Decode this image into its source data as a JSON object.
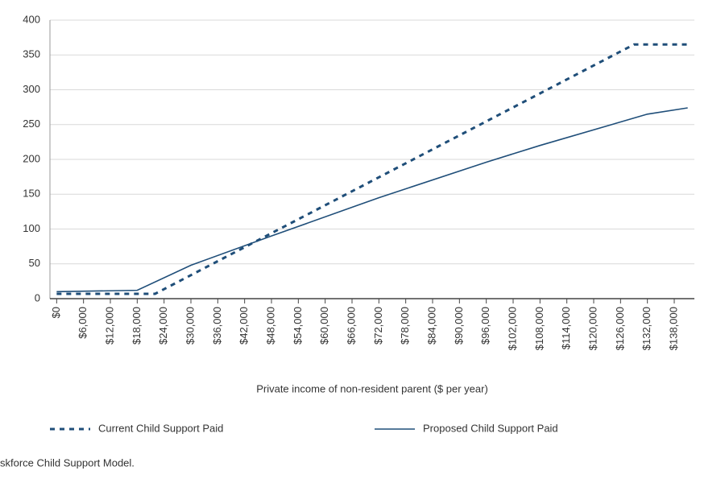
{
  "chart_data": {
    "type": "line",
    "x_label": "Private income of non-resident parent ($ per year)",
    "source": "skforce Child Support Model.",
    "xlim": [
      -1500,
      142500
    ],
    "xticks": [
      {
        "value": 0,
        "label": "$0"
      },
      {
        "value": 6000,
        "label": "$6,000"
      },
      {
        "value": 12000,
        "label": "$12,000"
      },
      {
        "value": 18000,
        "label": "$18,000"
      },
      {
        "value": 24000,
        "label": "$24,000"
      },
      {
        "value": 30000,
        "label": "$30,000"
      },
      {
        "value": 36000,
        "label": "$36,000"
      },
      {
        "value": 42000,
        "label": "$42,000"
      },
      {
        "value": 48000,
        "label": "$48,000"
      },
      {
        "value": 54000,
        "label": "$54,000"
      },
      {
        "value": 60000,
        "label": "$60,000"
      },
      {
        "value": 66000,
        "label": "$66,000"
      },
      {
        "value": 72000,
        "label": "$72,000"
      },
      {
        "value": 78000,
        "label": "$78,000"
      },
      {
        "value": 84000,
        "label": "$84,000"
      },
      {
        "value": 90000,
        "label": "$90,000"
      },
      {
        "value": 96000,
        "label": "$96,000"
      },
      {
        "value": 102000,
        "label": "$102,000"
      },
      {
        "value": 108000,
        "label": "$108,000"
      },
      {
        "value": 114000,
        "label": "$114,000"
      },
      {
        "value": 120000,
        "label": "$120,000"
      },
      {
        "value": 126000,
        "label": "$126,000"
      },
      {
        "value": 132000,
        "label": "$132,000"
      },
      {
        "value": 138000,
        "label": "$138,000"
      }
    ],
    "ylim": [
      0,
      400
    ],
    "yticks": [
      0,
      50,
      100,
      150,
      200,
      250,
      300,
      350,
      400
    ],
    "grid": true,
    "series": [
      {
        "name": "Current Child Support Paid",
        "color": "#1f4e79",
        "dash": true,
        "x": [
          0,
          22000,
          129000,
          141000
        ],
        "values": [
          7,
          7,
          365,
          365
        ]
      },
      {
        "name": "Proposed Child Support Paid",
        "color": "#1f4e79",
        "dash": false,
        "x": [
          0,
          18000,
          30000,
          48000,
          72000,
          96000,
          108000,
          132000,
          141000
        ],
        "values": [
          10,
          12,
          48,
          90,
          145,
          196,
          220,
          265,
          274
        ]
      }
    ]
  }
}
